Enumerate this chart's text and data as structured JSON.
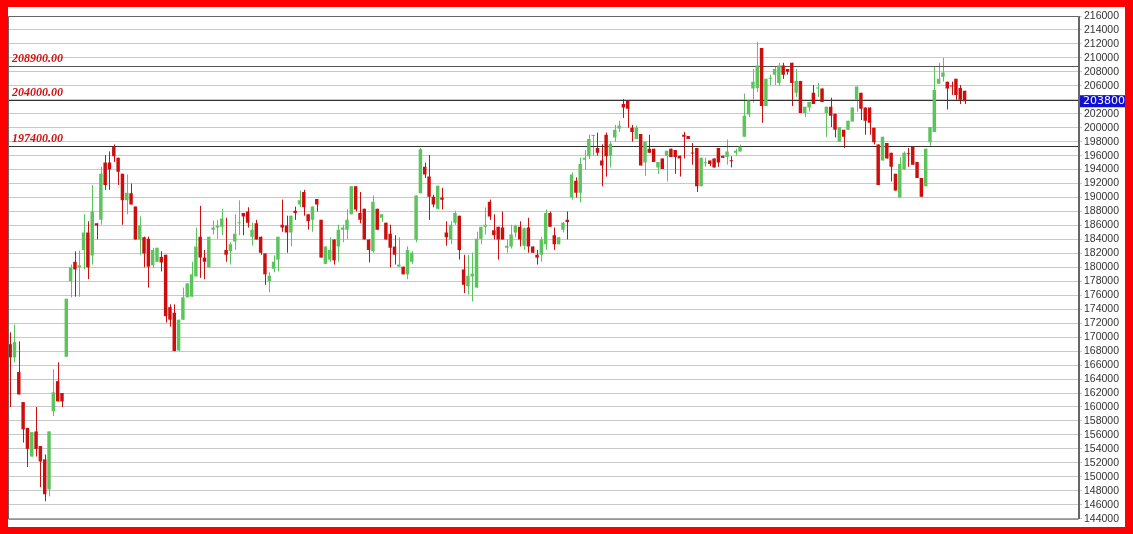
{
  "chart_data": {
    "type": "candlestick",
    "categories": [
      null,
      null,
      null,
      null,
      null,
      null,
      null,
      null,
      null,
      null,
      null,
      null,
      null,
      null,
      null,
      null,
      null,
      null,
      null,
      null,
      null,
      null,
      null,
      null,
      null,
      null,
      null,
      null,
      null,
      null,
      null,
      null,
      null,
      null,
      null,
      null,
      null,
      null,
      null,
      null,
      null,
      null,
      null,
      null,
      null,
      null,
      null,
      null,
      null,
      null,
      null,
      null,
      null,
      null,
      null,
      null,
      null,
      null,
      null,
      null,
      null,
      null,
      null,
      null,
      null,
      null,
      null,
      null,
      null,
      null,
      null,
      null,
      null,
      null,
      null,
      null,
      null,
      null,
      null,
      null,
      null,
      null,
      null,
      null,
      null,
      null,
      null,
      null,
      null,
      null,
      null,
      null,
      null,
      null,
      null,
      null,
      null,
      null,
      null,
      null,
      null,
      null,
      null,
      null,
      null,
      null,
      null,
      null,
      null,
      null,
      null,
      null,
      null,
      null,
      null,
      null,
      null,
      null,
      null,
      null,
      null,
      null,
      null,
      null,
      null,
      null,
      null,
      null,
      null,
      null,
      null,
      null,
      null,
      null,
      null,
      null,
      null,
      null,
      null,
      null,
      null,
      null,
      null,
      null,
      null,
      null,
      null,
      null,
      null,
      null,
      null,
      null,
      null,
      null,
      null,
      null,
      null,
      null,
      null,
      null,
      null,
      null,
      null,
      null,
      null,
      null,
      null,
      null,
      null,
      null,
      null,
      null,
      null,
      null,
      null,
      null,
      null,
      null,
      null,
      null,
      null,
      null,
      null,
      null,
      null,
      null,
      null,
      null,
      null,
      null,
      null,
      null,
      null,
      null,
      null,
      null,
      null,
      null,
      null,
      null,
      null,
      null,
      null,
      null,
      null,
      null,
      null,
      null,
      null,
      null,
      null,
      null,
      null,
      null,
      null,
      null,
      null,
      null,
      null,
      null,
      null,
      null,
      null,
      null,
      null,
      null,
      null,
      null,
      null,
      null,
      null,
      null,
      null,
      null,
      null,
      null,
      null,
      null,
      null,
      null,
      null,
      null,
      null,
      null,
      null,
      null,
      null,
      null
    ],
    "ohlc": [
      [
        169000,
        170700,
        160000,
        167100
      ],
      [
        167100,
        171800,
        166400,
        169300
      ],
      [
        165000,
        169400,
        161800,
        161800
      ],
      [
        160700,
        160700,
        154900,
        156800
      ],
      [
        157000,
        157000,
        151400,
        154000
      ],
      [
        152900,
        156400,
        152900,
        156400
      ],
      [
        156500,
        160000,
        152900,
        154000
      ],
      [
        154400,
        154400,
        148500,
        152200
      ],
      [
        152500,
        153200,
        146500,
        147500
      ],
      [
        148200,
        156500,
        147200,
        156500
      ],
      [
        159400,
        165400,
        158700,
        162100
      ],
      [
        163700,
        166400,
        160800,
        160800
      ],
      [
        162000,
        162000,
        160000,
        160800
      ],
      [
        167200,
        175500,
        167200,
        175500
      ],
      [
        178000,
        180400,
        175700,
        180000
      ],
      [
        180800,
        182300,
        175800,
        179700
      ],
      [
        180000,
        182400,
        175800,
        180300
      ],
      [
        182500,
        187600,
        179700,
        185000
      ],
      [
        185000,
        186600,
        178300,
        180000
      ],
      [
        181700,
        191800,
        180400,
        188000
      ],
      [
        186300,
        186300,
        184000,
        186000
      ],
      [
        186800,
        194400,
        186100,
        193400
      ],
      [
        195000,
        196100,
        191100,
        191800
      ],
      [
        195000,
        196600,
        191100,
        194000
      ],
      [
        197300,
        197600,
        195100,
        195900
      ],
      [
        195700,
        195700,
        191800,
        193700
      ],
      [
        193400,
        193400,
        186100,
        189600
      ],
      [
        189600,
        193300,
        187600,
        190700
      ],
      [
        190600,
        192000,
        189000,
        189000
      ],
      [
        188700,
        188700,
        184000,
        184000
      ],
      [
        184000,
        187300,
        181800,
        186000
      ],
      [
        184300,
        184400,
        180000,
        182000
      ],
      [
        184100,
        184400,
        177100,
        180100
      ],
      [
        180300,
        182800,
        180000,
        182500
      ],
      [
        180800,
        182800,
        180800,
        182800
      ],
      [
        181500,
        182300,
        179400,
        180700
      ],
      [
        181800,
        181800,
        172100,
        173000
      ],
      [
        174300,
        174700,
        171500,
        172500
      ],
      [
        173500,
        174700,
        168000,
        168000
      ],
      [
        168100,
        172500,
        168000,
        172500
      ],
      [
        172500,
        177100,
        172500,
        175700
      ],
      [
        175700,
        177700,
        175700,
        177700
      ],
      [
        175800,
        180800,
        175800,
        179000
      ],
      [
        178700,
        185700,
        178700,
        183000
      ],
      [
        184400,
        188800,
        178500,
        181400
      ],
      [
        181400,
        182500,
        178300,
        180800
      ],
      [
        180000,
        184400,
        180000,
        184400
      ],
      [
        185400,
        186700,
        184700,
        185700
      ],
      [
        185700,
        186800,
        184100,
        186000
      ],
      [
        185800,
        188400,
        184600,
        187000
      ],
      [
        182500,
        187100,
        180800,
        181800
      ],
      [
        182300,
        183600,
        180400,
        183300
      ],
      [
        183700,
        187600,
        182500,
        184800
      ],
      [
        186300,
        189600,
        184600,
        186300
      ],
      [
        187800,
        187800,
        184600,
        187300
      ],
      [
        188000,
        188600,
        185700,
        186400
      ],
      [
        184400,
        186400,
        183100,
        185400
      ],
      [
        186300,
        186800,
        184000,
        184000
      ],
      [
        184400,
        184400,
        181800,
        182100
      ],
      [
        182000,
        182000,
        177500,
        179000
      ],
      [
        178000,
        179300,
        176400,
        178800
      ],
      [
        179800,
        181700,
        179300,
        180800
      ],
      [
        181100,
        184400,
        179400,
        184400
      ],
      [
        186100,
        189700,
        185100,
        185700
      ],
      [
        186000,
        187400,
        182100,
        185000
      ],
      [
        185000,
        187400,
        183000,
        187400
      ],
      [
        188100,
        188700,
        186800,
        187800
      ],
      [
        189000,
        191000,
        188600,
        189600
      ],
      [
        190800,
        191100,
        187400,
        188600
      ],
      [
        187600,
        187600,
        185400,
        186600
      ],
      [
        186800,
        188700,
        185100,
        188700
      ],
      [
        189800,
        189800,
        188000,
        189000
      ],
      [
        186800,
        186800,
        181400,
        181400
      ],
      [
        180500,
        183000,
        180500,
        183000
      ],
      [
        181100,
        184300,
        180800,
        182500
      ],
      [
        184000,
        184000,
        180400,
        181000
      ],
      [
        183000,
        186100,
        180800,
        185400
      ],
      [
        185400,
        186100,
        183600,
        185700
      ],
      [
        185400,
        188300,
        184000,
        186800
      ],
      [
        187600,
        191600,
        187600,
        191600
      ],
      [
        191600,
        191600,
        188000,
        188300
      ],
      [
        187800,
        190800,
        186300,
        186800
      ],
      [
        188400,
        188400,
        184000,
        184000
      ],
      [
        184000,
        184000,
        180700,
        182500
      ],
      [
        182300,
        190300,
        182100,
        189400
      ],
      [
        188400,
        188400,
        185400,
        185400
      ],
      [
        187100,
        187600,
        186500,
        187600
      ],
      [
        186400,
        186400,
        184000,
        184000
      ],
      [
        184800,
        186100,
        180000,
        182800
      ],
      [
        183000,
        184600,
        180400,
        181800
      ],
      [
        180100,
        184300,
        180100,
        180400
      ],
      [
        180100,
        180100,
        179000,
        179000
      ],
      [
        179000,
        183000,
        178300,
        182500
      ],
      [
        180800,
        182300,
        180500,
        182100
      ],
      [
        184000,
        190300,
        183600,
        190300
      ],
      [
        190600,
        197100,
        190600,
        196900
      ],
      [
        194400,
        195000,
        192800,
        193300
      ],
      [
        193000,
        196100,
        186800,
        190100
      ],
      [
        190100,
        190400,
        188600,
        189000
      ],
      [
        188400,
        191700,
        188300,
        191700
      ],
      [
        190000,
        191400,
        188300,
        189700
      ],
      [
        185000,
        186600,
        183100,
        184300
      ],
      [
        184000,
        186600,
        183300,
        186100
      ],
      [
        186400,
        188100,
        186100,
        187800
      ],
      [
        187400,
        187400,
        181100,
        182500
      ],
      [
        179700,
        181800,
        176300,
        177500
      ],
      [
        177300,
        181800,
        176100,
        178800
      ],
      [
        178700,
        182100,
        175100,
        179100
      ],
      [
        177100,
        185100,
        177100,
        184100
      ],
      [
        184100,
        185800,
        183300,
        185800
      ],
      [
        185800,
        188600,
        184700,
        186100
      ],
      [
        189400,
        189700,
        186800,
        187300
      ],
      [
        185300,
        187600,
        184000,
        184600
      ],
      [
        185800,
        185800,
        181100,
        184000
      ],
      [
        185700,
        188000,
        184000,
        184000
      ],
      [
        182800,
        184000,
        182100,
        183100
      ],
      [
        183000,
        186100,
        182700,
        184700
      ],
      [
        185000,
        186100,
        184300,
        186000
      ],
      [
        185800,
        186600,
        183000,
        184000
      ],
      [
        183100,
        185700,
        182500,
        185600
      ],
      [
        185700,
        187100,
        182100,
        183000
      ],
      [
        183000,
        183000,
        182100,
        182100
      ],
      [
        181800,
        182500,
        180400,
        181400
      ],
      [
        181800,
        184400,
        180800,
        184000
      ],
      [
        183300,
        188300,
        182500,
        187800
      ],
      [
        187800,
        188000,
        185800,
        185800
      ],
      [
        184600,
        185700,
        182500,
        183300
      ],
      [
        183300,
        184300,
        183300,
        184300
      ],
      [
        185400,
        186500,
        185000,
        186400
      ],
      [
        186800,
        188000,
        184000,
        186500
      ],
      [
        190000,
        193600,
        189700,
        193300
      ],
      [
        192400,
        192900,
        190000,
        190700
      ],
      [
        190700,
        195700,
        189300,
        194800
      ],
      [
        195400,
        196800,
        194000,
        195700
      ],
      [
        195900,
        199000,
        195500,
        198400
      ],
      [
        198800,
        199000,
        196000,
        198900
      ],
      [
        197100,
        199300,
        196000,
        196400
      ],
      [
        195300,
        197600,
        191600,
        194600
      ],
      [
        199000,
        199300,
        193000,
        195900
      ],
      [
        196000,
        198000,
        194300,
        197700
      ],
      [
        198600,
        200400,
        198000,
        199700
      ],
      [
        199900,
        201000,
        199400,
        200300
      ],
      [
        203400,
        204100,
        201400,
        202900
      ],
      [
        203900,
        203900,
        200000,
        202700
      ],
      [
        200000,
        200400,
        198000,
        199400
      ],
      [
        198400,
        200300,
        198400,
        200000
      ],
      [
        199100,
        199100,
        194600,
        194600
      ],
      [
        195000,
        198000,
        193100,
        198000
      ],
      [
        197000,
        199000,
        196400,
        196400
      ],
      [
        197000,
        197000,
        195100,
        195100
      ],
      [
        194300,
        195100,
        193400,
        195100
      ],
      [
        195600,
        195600,
        194100,
        194100
      ],
      [
        196000,
        196700,
        192300,
        196700
      ],
      [
        197000,
        197000,
        195800,
        195800
      ],
      [
        196800,
        196800,
        193400,
        195800
      ],
      [
        196000,
        196000,
        193000,
        195600
      ],
      [
        199000,
        199400,
        195600,
        198700
      ],
      [
        198800,
        198800,
        198400,
        198400
      ],
      [
        196400,
        197800,
        194700,
        196300
      ],
      [
        197100,
        197100,
        190800,
        191600
      ],
      [
        191600,
        195700,
        191600,
        195700
      ],
      [
        194900,
        195700,
        194400,
        195000
      ],
      [
        195300,
        195300,
        194500,
        194800
      ],
      [
        195600,
        195600,
        194300,
        194300
      ],
      [
        197100,
        197100,
        194400,
        195000
      ],
      [
        196000,
        196000,
        195700,
        195700
      ],
      [
        195800,
        198300,
        194700,
        196600
      ],
      [
        195300,
        195900,
        194300,
        195200
      ],
      [
        196400,
        197000,
        196000,
        196700
      ],
      [
        196600,
        197600,
        196600,
        197300
      ],
      [
        198700,
        204900,
        198700,
        201700
      ],
      [
        201900,
        203900,
        201500,
        203900
      ],
      [
        205600,
        208400,
        203600,
        206600
      ],
      [
        205700,
        212300,
        205100,
        208900
      ],
      [
        211400,
        211400,
        200700,
        203100
      ],
      [
        203100,
        207000,
        203100,
        207000
      ],
      [
        207000,
        207600,
        206100,
        207000
      ],
      [
        207600,
        208700,
        206100,
        208400
      ],
      [
        206400,
        209300,
        206000,
        208900
      ],
      [
        208900,
        209300,
        207000,
        207600
      ],
      [
        208400,
        208400,
        207600,
        208000
      ],
      [
        209300,
        209300,
        203100,
        206400
      ],
      [
        205000,
        208400,
        204400,
        206700
      ],
      [
        206700,
        206700,
        202100,
        202100
      ],
      [
        202100,
        203000,
        201500,
        203000
      ],
      [
        202900,
        203700,
        202300,
        203700
      ],
      [
        205000,
        206100,
        203400,
        203400
      ],
      [
        205600,
        206400,
        204400,
        205700
      ],
      [
        205600,
        205600,
        203700,
        203700
      ],
      [
        202100,
        203000,
        198700,
        203000
      ],
      [
        203000,
        204300,
        200100,
        201700
      ],
      [
        202000,
        202000,
        198600,
        199700
      ],
      [
        198000,
        200100,
        198000,
        200100
      ],
      [
        199700,
        199700,
        197100,
        198700
      ],
      [
        199700,
        201000,
        199700,
        201000
      ],
      [
        200900,
        202900,
        200900,
        202900
      ],
      [
        204000,
        205900,
        202300,
        205900
      ],
      [
        205000,
        205000,
        201100,
        202700
      ],
      [
        202900,
        202900,
        199000,
        201000
      ],
      [
        202900,
        202900,
        199000,
        200700
      ],
      [
        200000,
        200000,
        197600,
        197900
      ],
      [
        197600,
        197600,
        191800,
        191800
      ],
      [
        195300,
        198700,
        195300,
        198700
      ],
      [
        197800,
        197800,
        195600,
        195600
      ],
      [
        196400,
        196400,
        192300,
        194400
      ],
      [
        193400,
        193400,
        191000,
        191000
      ],
      [
        190000,
        195800,
        190000,
        194800
      ],
      [
        194000,
        196600,
        194000,
        196400
      ],
      [
        196300,
        197100,
        194400,
        196200
      ],
      [
        197300,
        197300,
        194700,
        194700
      ],
      [
        195100,
        195100,
        192800,
        192800
      ],
      [
        192800,
        192800,
        190100,
        190100
      ],
      [
        191600,
        197000,
        191600,
        197000
      ],
      [
        197900,
        200100,
        197400,
        200100
      ],
      [
        199400,
        208700,
        199400,
        205400
      ],
      [
        206300,
        209300,
        206300,
        207000
      ],
      [
        207300,
        210000,
        206600,
        207900
      ],
      [
        206600,
        206600,
        202600,
        205600
      ],
      [
        206000,
        206600,
        204700,
        205900
      ],
      [
        207000,
        207000,
        204000,
        204700
      ],
      [
        205700,
        206100,
        203400,
        204000
      ],
      [
        205300,
        205300,
        203400,
        203800
      ],
      null,
      null,
      null,
      null,
      null,
      null,
      null,
      null,
      null,
      null,
      null,
      null,
      null,
      null,
      null,
      null,
      null,
      null,
      null,
      null,
      null,
      null,
      null,
      null,
      null,
      null
    ],
    "colors": [
      "#cc0e0e",
      "#5cc45c",
      "#cc0e0e",
      "#cc0e0e",
      "#cc0e0e",
      "#5cc45c",
      "#cc0e0e",
      "#cc0e0e",
      "#cc0e0e",
      "#5cc45c",
      "#5cc45c",
      "#cc0e0e",
      "#cc0e0e",
      "#5cc45c",
      "#5cc45c",
      "#cc0e0e",
      "#5cc45c",
      "#5cc45c",
      "#cc0e0e",
      "#5cc45c",
      "#cc0e0e",
      "#5cc45c",
      "#cc0e0e",
      "#cc0e0e",
      "#cc0e0e",
      "#cc0e0e",
      "#cc0e0e",
      "#5cc45c",
      "#cc0e0e",
      "#cc0e0e",
      "#5cc45c",
      "#cc0e0e",
      "#cc0e0e",
      "#5cc45c",
      "#5cc45c",
      "#cc0e0e",
      "#cc0e0e",
      "#cc0e0e",
      "#cc0e0e",
      "#5cc45c",
      "#5cc45c",
      "#5cc45c",
      "#5cc45c",
      "#5cc45c",
      "#cc0e0e",
      "#cc0e0e",
      "#5cc45c",
      "#5cc45c",
      "#5cc45c",
      "#5cc45c",
      "#cc0e0e",
      "#5cc45c",
      "#5cc45c",
      "#5cc45c",
      "#cc0e0e",
      "#cc0e0e",
      "#5cc45c",
      "#cc0e0e",
      "#cc0e0e",
      "#cc0e0e",
      "#5cc45c",
      "#5cc45c",
      "#5cc45c",
      "#cc0e0e",
      "#cc0e0e",
      "#5cc45c",
      "#cc0e0e",
      "#5cc45c",
      "#cc0e0e",
      "#cc0e0e",
      "#5cc45c",
      "#cc0e0e",
      "#cc0e0e",
      "#5cc45c",
      "#5cc45c",
      "#cc0e0e",
      "#5cc45c",
      "#5cc45c",
      "#5cc45c",
      "#5cc45c",
      "#cc0e0e",
      "#cc0e0e",
      "#cc0e0e",
      "#cc0e0e",
      "#5cc45c",
      "#cc0e0e",
      "#5cc45c",
      "#cc0e0e",
      "#cc0e0e",
      "#cc0e0e",
      "#5cc45c",
      "#cc0e0e",
      "#5cc45c",
      "#5cc45c",
      "#5cc45c",
      "#5cc45c",
      "#cc0e0e",
      "#cc0e0e",
      "#cc0e0e",
      "#5cc45c",
      "#cc0e0e",
      "#cc0e0e",
      "#5cc45c",
      "#5cc45c",
      "#cc0e0e",
      "#cc0e0e",
      "#5cc45c",
      "#5cc45c",
      "#5cc45c",
      "#5cc45c",
      "#5cc45c",
      "#cc0e0e",
      "#cc0e0e",
      "#cc0e0e",
      "#cc0e0e",
      "#5cc45c",
      "#5cc45c",
      "#5cc45c",
      "#cc0e0e",
      "#5cc45c",
      "#cc0e0e",
      "#cc0e0e",
      "#cc0e0e",
      "#5cc45c",
      "#5cc45c",
      "#cc0e0e",
      "#cc0e0e",
      "#5cc45c",
      "#5cc45c",
      "#cc0e0e",
      "#5cc45c",
      "#cc0e0e",
      "#5cc45c",
      "#5cc45c",
      "#5cc45c",
      "#5cc45c",
      "#cc0e0e",
      "#cc0e0e",
      "#cc0e0e",
      "#5cc45c",
      "#5cc45c",
      "#5cc45c",
      "#cc0e0e",
      "#cc0e0e",
      "#cc0e0e",
      "#5cc45c",
      "#cc0e0e",
      "#5cc45c",
      "#cc0e0e",
      "#cc0e0e",
      "#5cc45c",
      "#cc0e0e",
      "#5cc45c",
      "#cc0e0e",
      "#cc0e0e",
      "#cc0e0e",
      "#cc0e0e",
      "#cc0e0e",
      "#cc0e0e",
      "#cc0e0e",
      "#5cc45c",
      "#5cc45c",
      "#cc0e0e",
      "#cc0e0e",
      "#cc0e0e",
      "#cc0e0e",
      "#5cc45c",
      "#cc0e0e",
      "#5cc45c",
      "#5cc45c",
      "#5cc45c",
      "#5cc45c",
      "#5cc45c",
      "#5cc45c",
      "#cc0e0e",
      "#5cc45c",
      "#5cc45c",
      "#5cc45c",
      "#5cc45c",
      "#cc0e0e",
      "#cc0e0e",
      "#cc0e0e",
      "#5cc45c",
      "#cc0e0e",
      "#5cc45c",
      "#5cc45c",
      "#cc0e0e",
      "#5cc45c",
      "#cc0e0e",
      "#5cc45c",
      "#cc0e0e",
      "#cc0e0e",
      "#5cc45c",
      "#cc0e0e",
      "#5cc45c",
      "#5cc45c",
      "#5cc45c",
      "#cc0e0e",
      "#cc0e0e",
      "#cc0e0e",
      "#cc0e0e",
      "#cc0e0e",
      "#5cc45c",
      "#cc0e0e",
      "#cc0e0e",
      "#cc0e0e",
      "#5cc45c",
      "#5cc45c",
      "#cc0e0e",
      "#cc0e0e",
      "#cc0e0e",
      "#cc0e0e",
      "#5cc45c",
      "#5cc45c",
      "#5cc45c",
      "#5cc45c",
      "#5cc45c",
      "#cc0e0e",
      "#cc0e0e",
      "#cc0e0e",
      "#cc0e0e",
      "#cc0e0e",
      null,
      null,
      null,
      null,
      null,
      null,
      null,
      null,
      null,
      null,
      null,
      null,
      null,
      null,
      null,
      null,
      null,
      null,
      null,
      null,
      null,
      null,
      null,
      null,
      null,
      null
    ],
    "ylim": [
      144000,
      216000
    ],
    "yticks": [
      144000,
      146000,
      148000,
      150000,
      152000,
      154000,
      156000,
      158000,
      160000,
      162000,
      164000,
      166000,
      168000,
      170000,
      172000,
      174000,
      176000,
      178000,
      180000,
      182000,
      184000,
      186000,
      188000,
      190000,
      192000,
      194000,
      196000,
      198000,
      200000,
      202000,
      204000,
      206000,
      208000,
      210000,
      212000,
      214000,
      216000
    ],
    "grid": "y",
    "tick_labels": "y",
    "ref_lines": [
      {
        "axis": "y",
        "value": 208900,
        "label": "208900.00",
        "color": "#555555"
      },
      {
        "axis": "y",
        "value": 204000,
        "label": "204000.00",
        "color": "#333333"
      },
      {
        "axis": "y",
        "value": 197400,
        "label": "197400.00",
        "color": "#333333"
      }
    ],
    "annotations": [
      "203800"
    ]
  }
}
